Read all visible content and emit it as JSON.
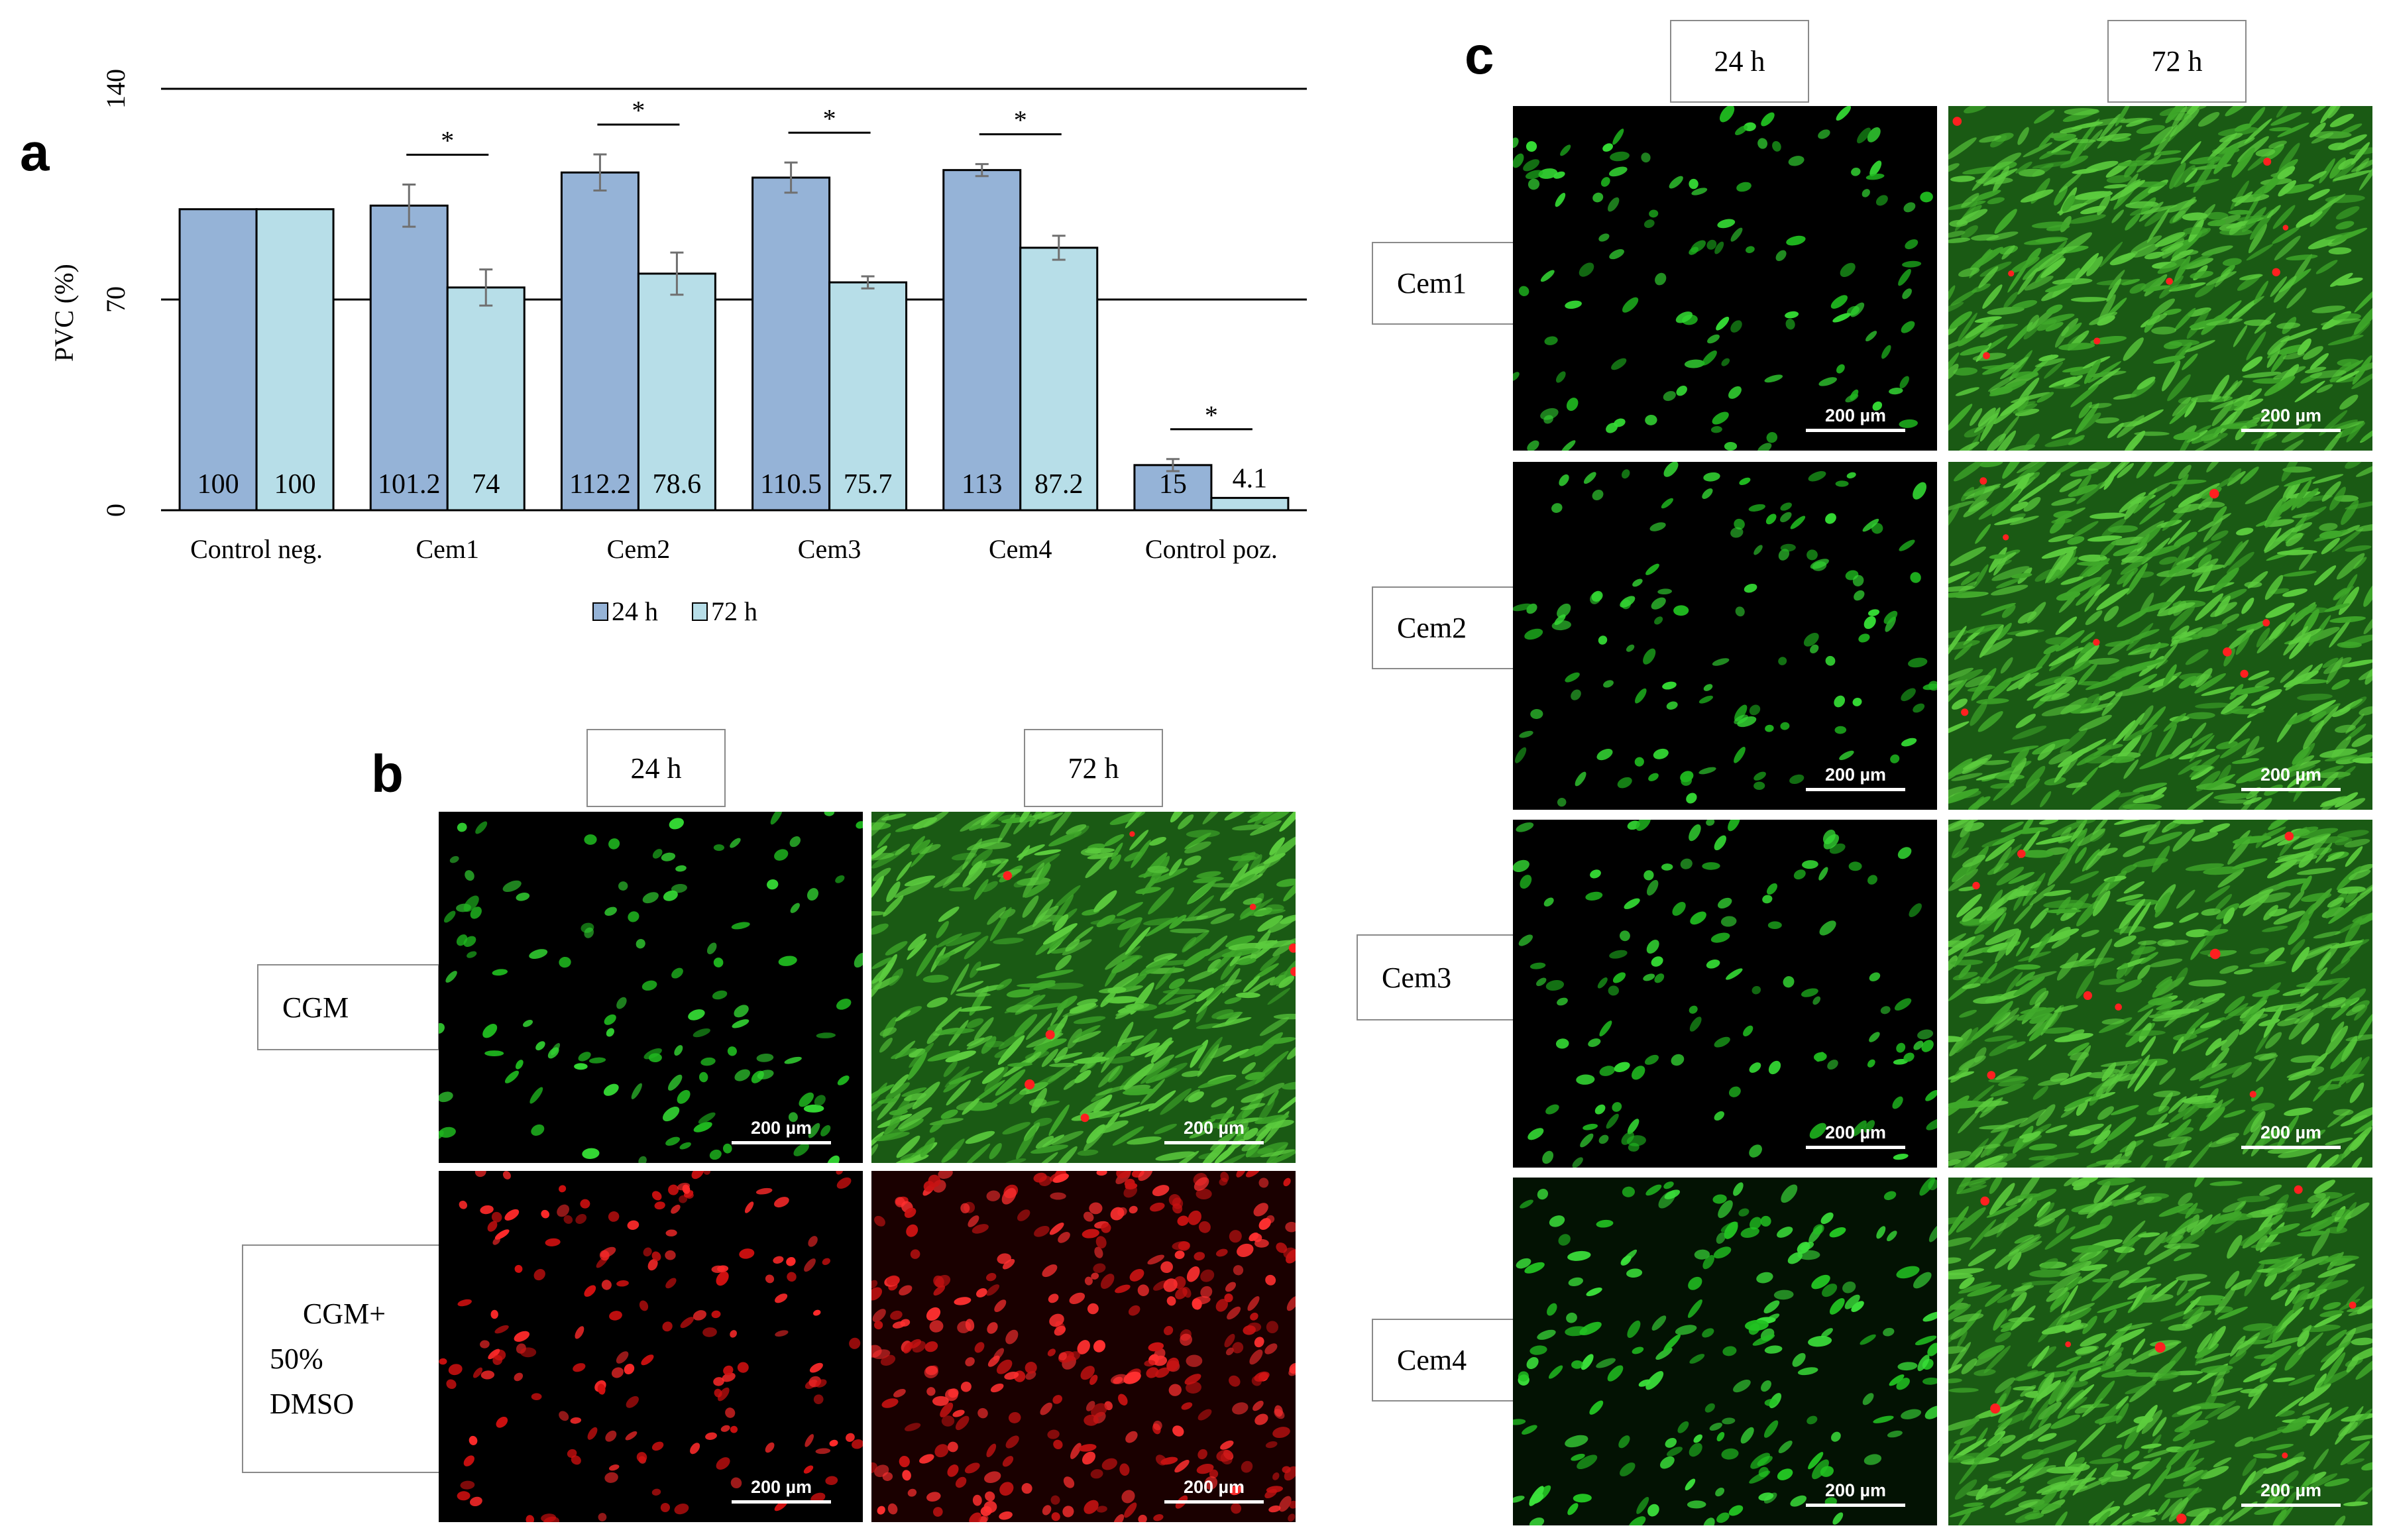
{
  "panels": {
    "a": "a",
    "b": "b",
    "c": "c"
  },
  "chart_data": {
    "type": "bar",
    "ylabel": "PVC (%)",
    "ylim": [
      0,
      140
    ],
    "yticks": [
      0,
      70,
      140
    ],
    "categories": [
      "Control neg.",
      "Cem1",
      "Cem2",
      "Cem3",
      "Cem4",
      "Control poz."
    ],
    "series": [
      {
        "name": "24 h",
        "values": [
          100,
          101.2,
          112.2,
          110.5,
          113,
          15
        ],
        "errors": [
          0,
          7,
          6,
          5,
          2,
          2
        ],
        "color": "#95b3d7"
      },
      {
        "name": "72 h",
        "values": [
          100,
          74,
          78.6,
          75.7,
          87.2,
          4.1
        ],
        "errors": [
          0,
          6,
          7,
          2,
          4,
          0
        ],
        "color": "#b7dee8"
      }
    ],
    "significance": [
      {
        "category": "Cem1",
        "label": "*"
      },
      {
        "category": "Cem2",
        "label": "*"
      },
      {
        "category": "Cem3",
        "label": "*"
      },
      {
        "category": "Cem4",
        "label": "*"
      },
      {
        "category": "Control poz.",
        "label": "*"
      }
    ],
    "legend": [
      "24 h",
      "72 h"
    ],
    "legend_position": "bottom",
    "grid": false
  },
  "panel_b": {
    "col_headers": [
      "24 h",
      "72 h"
    ],
    "rows": [
      {
        "label": [
          "CGM"
        ]
      },
      {
        "label": [
          "CGM+",
          "50%",
          "DMSO"
        ]
      }
    ]
  },
  "panel_c": {
    "col_headers": [
      "24 h",
      "72 h"
    ],
    "rows": [
      {
        "label": "Cem1"
      },
      {
        "label": "Cem2"
      },
      {
        "label": "Cem3"
      },
      {
        "label": "Cem4"
      }
    ]
  },
  "scale_bar": "200 µm"
}
